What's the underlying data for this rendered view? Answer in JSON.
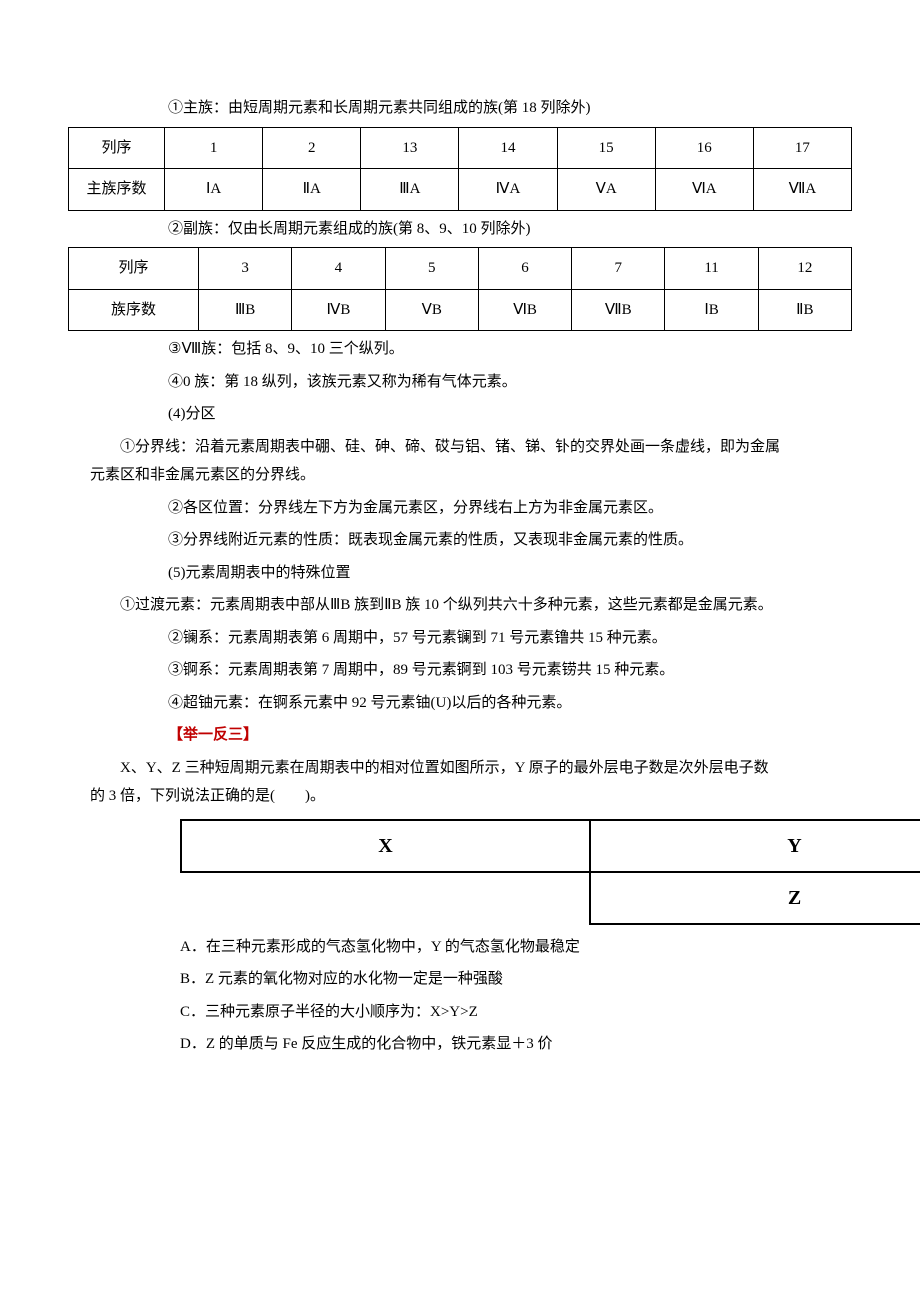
{
  "line1": "①主族：由短周期元素和长周期元素共同组成的族(第 18 列除外)",
  "table1": {
    "header": [
      "列序",
      "1",
      "2",
      "13",
      "14",
      "15",
      "16",
      "17"
    ],
    "row_label": "主族序数",
    "row": [
      "ⅠA",
      "ⅡA",
      "ⅢA",
      "ⅣA",
      "ⅤA",
      "ⅥA",
      "ⅦA"
    ]
  },
  "line2": "②副族：仅由长周期元素组成的族(第 8、9、10 列除外)",
  "table2": {
    "header": [
      "列序",
      "3",
      "4",
      "5",
      "6",
      "7",
      "11",
      "12"
    ],
    "row_label": "族序数",
    "row": [
      "ⅢB",
      "ⅣB",
      "ⅤB",
      "ⅥB",
      "ⅦB",
      "ⅠB",
      "ⅡB"
    ]
  },
  "p3": "③Ⅷ族：包括 8、9、10 三个纵列。",
  "p4": "④0 族：第 18 纵列，该族元素又称为稀有气体元素。",
  "p5": "(4)分区",
  "p6": "①分界线：沿着元素周期表中硼、硅、砷、碲、砹与铝、锗、锑、钋的交界处画一条虚线，即为金属元素区和非金属元素区的分界线。",
  "p7": "②各区位置：分界线左下方为金属元素区，分界线右上方为非金属元素区。",
  "p8": "③分界线附近元素的性质：既表现金属元素的性质，又表现非金属元素的性质。",
  "p9": "(5)元素周期表中的特殊位置",
  "p10": "①过渡元素：元素周期表中部从ⅢB 族到ⅡB 族 10 个纵列共六十多种元素，这些元素都是金属元素。",
  "p11": "②镧系：元素周期表第 6 周期中，57 号元素镧到 71 号元素镥共 15 种元素。",
  "p12": "③锕系：元素周期表第 7 周期中，89 号元素锕到 103 号元素铹共 15 种元素。",
  "p13": "④超铀元素：在锕系元素中 92 号元素铀(U)以后的各种元素。",
  "heading": "【举一反三】",
  "q1": "X、Y、Z 三种短周期元素在周期表中的相对位置如图所示，Y 原子的最外层电子数是次外层电子数的 3 倍，下列说法正确的是(　　)。",
  "pos": {
    "x": "X",
    "y": "Y",
    "z": "Z"
  },
  "optA": "A．在三种元素形成的气态氢化物中，Y 的气态氢化物最稳定",
  "optB": "B．Z 元素的氧化物对应的水化物一定是一种强酸",
  "optC": "C．三种元素原子半径的大小顺序为：X>Y>Z",
  "optD": "D．Z 的单质与 Fe 反应生成的化合物中，铁元素显＋3 价"
}
